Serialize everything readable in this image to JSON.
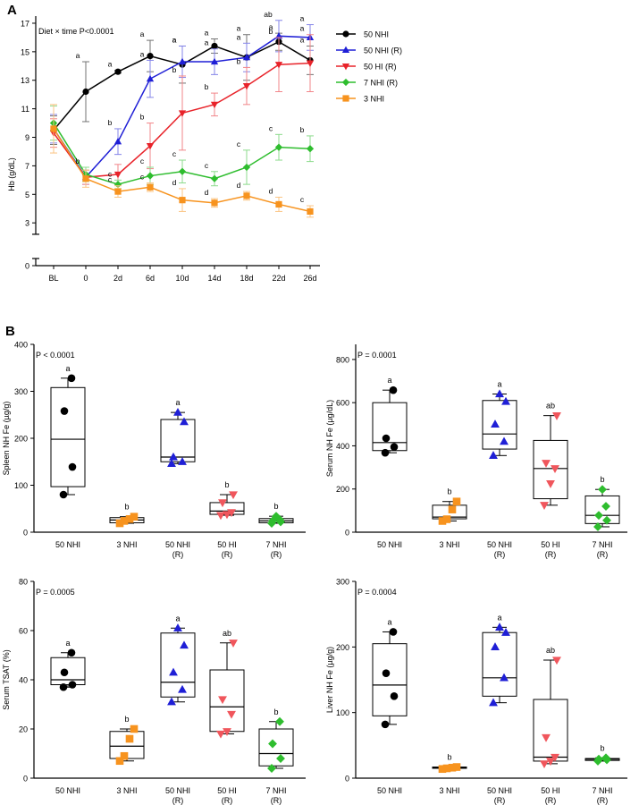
{
  "panels": {
    "a": "A",
    "b": "B"
  },
  "colors": {
    "50 NHI": "#000000",
    "50 NHI (R)": "#1f1fd6",
    "50 HI (R)": "#e8232a",
    "7 NHI (R)": "#2ebd2e",
    "3 NHI": "#f7931e",
    "50 HI (R) points": "#f0565c",
    "3 NHI points": "#f7931e"
  },
  "chart_data": [
    {
      "type": "line",
      "panel": "A",
      "annotation": "Diet × time P<0.0001",
      "ylabel": "Hb (g/dL)",
      "x": [
        "BL",
        "0",
        "2d",
        "6d",
        "10d",
        "14d",
        "18d",
        "22d",
        "26d"
      ],
      "yticks": [
        0,
        3,
        5,
        7,
        9,
        11,
        13,
        15,
        17
      ],
      "ylim": [
        0,
        17.5
      ],
      "axis_break": [
        0.5,
        2.2
      ],
      "series": [
        {
          "name": "50 NHI",
          "marker": "circle",
          "values": [
            9.5,
            12.2,
            13.6,
            14.7,
            14.1,
            15.4,
            14.6,
            15.7,
            14.4
          ],
          "err": [
            1.0,
            2.1,
            0.1,
            1.1,
            1.3,
            0.5,
            1.6,
            0.6,
            1.0
          ],
          "labels": [
            "",
            "a",
            "a",
            "a",
            "a",
            "a",
            "a",
            "a",
            "a"
          ]
        },
        {
          "name": "50 NHI (R)",
          "marker": "triangle-up",
          "values": [
            9.6,
            6.2,
            8.7,
            13.1,
            14.3,
            14.3,
            14.6,
            16.1,
            16.0
          ],
          "err": [
            1.0,
            0.5,
            0.9,
            1.3,
            1.1,
            0.9,
            1.0,
            1.1,
            0.9
          ],
          "labels": [
            "",
            "",
            "b",
            "a",
            "a",
            "a",
            "a",
            "ab",
            "a"
          ]
        },
        {
          "name": "50 HI (R)",
          "marker": "triangle-down",
          "values": [
            9.3,
            6.2,
            6.4,
            8.4,
            10.7,
            11.3,
            12.6,
            14.1,
            14.2
          ],
          "err": [
            1.0,
            0.5,
            0.7,
            1.6,
            2.6,
            0.8,
            1.3,
            1.9,
            2.0
          ],
          "labels": [
            "",
            "",
            "",
            "b",
            "b",
            "b",
            "b",
            "b",
            "a"
          ]
        },
        {
          "name": "7 NHI (R)",
          "marker": "diamond",
          "values": [
            10.0,
            6.4,
            5.7,
            6.3,
            6.6,
            6.1,
            6.9,
            8.3,
            8.2
          ],
          "err": [
            1.2,
            0.5,
            0.3,
            0.6,
            0.8,
            0.5,
            1.2,
            0.9,
            0.9
          ],
          "labels": [
            "",
            "b",
            "c",
            "c",
            "c",
            "c",
            "c",
            "c",
            "b"
          ]
        },
        {
          "name": "3 NHI",
          "marker": "square",
          "values": [
            9.6,
            6.1,
            5.2,
            5.5,
            4.6,
            4.4,
            4.9,
            4.3,
            3.8
          ],
          "err": [
            1.7,
            0.6,
            0.4,
            0.3,
            0.8,
            0.3,
            0.3,
            0.5,
            0.4
          ],
          "labels": [
            "",
            "",
            "c",
            "c",
            "d",
            "d",
            "d",
            "d",
            "c"
          ]
        }
      ],
      "legend": "right"
    },
    {
      "type": "box",
      "panel": "B",
      "annotation": "P < 0.0001",
      "ylabel": "Spleen NH Fe (µg/g)",
      "ylim": [
        0,
        400
      ],
      "yticks": [
        0,
        100,
        200,
        300,
        400
      ],
      "categories": [
        {
          "line1": "50 NHI",
          "line2": ""
        },
        {
          "line1": "3 NHI",
          "line2": ""
        },
        {
          "line1": "50 NHI",
          "line2": "(R)"
        },
        {
          "line1": "50 HI",
          "line2": "(R)"
        },
        {
          "line1": "7 NHI",
          "line2": "(R)"
        }
      ],
      "boxes": [
        {
          "name": "50 NHI",
          "marker": "circle",
          "min": 80,
          "q1": 97,
          "median": 198,
          "q3": 308,
          "max": 328,
          "points": [
            80,
            139,
            258,
            328
          ],
          "label": "a"
        },
        {
          "name": "3 NHI",
          "marker": "square",
          "min": 19,
          "q1": 20,
          "median": 26,
          "q3": 31,
          "max": 33,
          "points": [
            19,
            24,
            28,
            33
          ],
          "label": "b"
        },
        {
          "name": "50 NHI (R)",
          "marker": "triangle-up",
          "min": 146,
          "q1": 150,
          "median": 160,
          "q3": 240,
          "max": 255,
          "points": [
            146,
            150,
            160,
            235,
            255
          ],
          "label": "a"
        },
        {
          "name": "50 HI (R)",
          "marker": "triangle-down",
          "min": 36,
          "q1": 38,
          "median": 45,
          "q3": 63,
          "max": 80,
          "points": [
            36,
            38,
            42,
            63,
            80
          ],
          "label": "b"
        },
        {
          "name": "7 NHI (R)",
          "marker": "diamond",
          "min": 19,
          "q1": 20,
          "median": 24,
          "q3": 29,
          "max": 34,
          "points": [
            19,
            22,
            24,
            27,
            34
          ],
          "label": "b"
        }
      ]
    },
    {
      "type": "box",
      "panel": "B",
      "annotation": "P = 0.0001",
      "ylabel": "Serum NH Fe (µg/dL)",
      "ylim": [
        0,
        870
      ],
      "yticks": [
        0,
        200,
        400,
        600,
        800
      ],
      "categories": [
        {
          "line1": "50 NHI",
          "line2": ""
        },
        {
          "line1": "3 NHI",
          "line2": ""
        },
        {
          "line1": "50 NHI",
          "line2": "(R)"
        },
        {
          "line1": "50 HI",
          "line2": "(R)"
        },
        {
          "line1": "7 NHI",
          "line2": "(R)"
        }
      ],
      "boxes": [
        {
          "name": "50 NHI",
          "marker": "circle",
          "min": 368,
          "q1": 378,
          "median": 415,
          "q3": 600,
          "max": 658,
          "points": [
            368,
            395,
            435,
            658
          ],
          "label": "a"
        },
        {
          "name": "3 NHI",
          "marker": "square",
          "min": 52,
          "q1": 62,
          "median": 70,
          "q3": 125,
          "max": 142,
          "points": [
            52,
            60,
            105,
            142
          ],
          "label": "b"
        },
        {
          "name": "50 NHI (R)",
          "marker": "triangle-up",
          "min": 355,
          "q1": 385,
          "median": 455,
          "q3": 610,
          "max": 640,
          "points": [
            355,
            420,
            500,
            605,
            640
          ],
          "label": "a"
        },
        {
          "name": "50 HI (R)",
          "marker": "triangle-down",
          "min": 125,
          "q1": 155,
          "median": 295,
          "q3": 425,
          "max": 540,
          "points": [
            125,
            225,
            295,
            320,
            540
          ],
          "label": "ab"
        },
        {
          "name": "7 NHI (R)",
          "marker": "diamond",
          "min": 25,
          "q1": 40,
          "median": 78,
          "q3": 168,
          "max": 198,
          "points": [
            25,
            55,
            78,
            120,
            198
          ],
          "label": "b"
        }
      ]
    },
    {
      "type": "box",
      "panel": "B",
      "annotation": "P = 0.0005",
      "ylabel": "Serum TSAT (%)",
      "ylim": [
        0,
        80
      ],
      "yticks": [
        0,
        20,
        40,
        60,
        80
      ],
      "categories": [
        {
          "line1": "50 NHI",
          "line2": ""
        },
        {
          "line1": "3 NHI",
          "line2": ""
        },
        {
          "line1": "50 NHI",
          "line2": "(R)"
        },
        {
          "line1": "50 HI",
          "line2": "(R)"
        },
        {
          "line1": "7 NHI",
          "line2": "(R)"
        }
      ],
      "boxes": [
        {
          "name": "50 NHI",
          "marker": "circle",
          "min": 37,
          "q1": 38,
          "median": 40,
          "q3": 49,
          "max": 51,
          "points": [
            37,
            38,
            43,
            51
          ],
          "label": "a"
        },
        {
          "name": "3 NHI",
          "marker": "square",
          "min": 7,
          "q1": 8,
          "median": 13,
          "q3": 19,
          "max": 20,
          "points": [
            7,
            9,
            16,
            20
          ],
          "label": "b"
        },
        {
          "name": "50 NHI (R)",
          "marker": "triangle-up",
          "min": 31,
          "q1": 33,
          "median": 39,
          "q3": 59,
          "max": 61,
          "points": [
            31,
            36,
            43,
            54,
            61
          ],
          "label": "a"
        },
        {
          "name": "50 HI (R)",
          "marker": "triangle-down",
          "min": 18,
          "q1": 19,
          "median": 29,
          "q3": 44,
          "max": 55,
          "points": [
            18,
            19,
            26,
            32,
            55
          ],
          "label": "ab"
        },
        {
          "name": "7 NHI (R)",
          "marker": "diamond",
          "min": 4,
          "q1": 5,
          "median": 10,
          "q3": 20,
          "max": 23,
          "points": [
            4,
            8,
            14,
            23
          ],
          "label": "b"
        }
      ]
    },
    {
      "type": "box",
      "panel": "B",
      "annotation": "P = 0.0004",
      "ylabel": "Liver NH Fe (µg/g)",
      "ylim": [
        0,
        300
      ],
      "yticks": [
        0,
        100,
        200,
        300
      ],
      "categories": [
        {
          "line1": "50 NHI",
          "line2": ""
        },
        {
          "line1": "3 NHI",
          "line2": ""
        },
        {
          "line1": "50 NHI",
          "line2": "(R)"
        },
        {
          "line1": "50 HI",
          "line2": "(R)"
        },
        {
          "line1": "7 NHI",
          "line2": "(R)"
        }
      ],
      "boxes": [
        {
          "name": "50 NHI",
          "marker": "circle",
          "min": 82,
          "q1": 95,
          "median": 142,
          "q3": 205,
          "max": 223,
          "points": [
            82,
            125,
            160,
            223
          ],
          "label": "a"
        },
        {
          "name": "3 NHI",
          "marker": "square",
          "min": 14,
          "q1": 15,
          "median": 16,
          "q3": 17,
          "max": 17,
          "points": [
            14,
            15,
            16,
            17
          ],
          "label": "b"
        },
        {
          "name": "50 NHI (R)",
          "marker": "triangle-up",
          "min": 115,
          "q1": 125,
          "median": 153,
          "q3": 222,
          "max": 230,
          "points": [
            115,
            153,
            200,
            222,
            230
          ],
          "label": "a"
        },
        {
          "name": "50 HI (R)",
          "marker": "triangle-down",
          "min": 22,
          "q1": 26,
          "median": 32,
          "q3": 120,
          "max": 180,
          "points": [
            22,
            26,
            32,
            62,
            180
          ],
          "label": "ab"
        },
        {
          "name": "7 NHI (R)",
          "marker": "diamond",
          "min": 26,
          "q1": 27,
          "median": 29,
          "q3": 30,
          "max": 31,
          "points": [
            26,
            28,
            29,
            31
          ],
          "label": "b"
        }
      ]
    }
  ]
}
